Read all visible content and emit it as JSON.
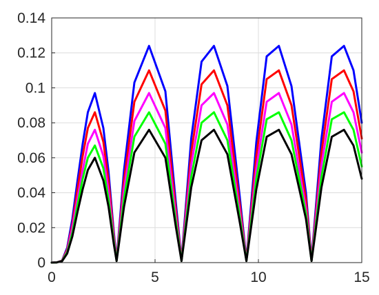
{
  "chart_data": {
    "type": "line",
    "title": "",
    "xlabel": "",
    "ylabel": "",
    "xlim": [
      0,
      15
    ],
    "ylim": [
      0,
      0.14
    ],
    "grid": true,
    "legend": "none",
    "xticks": [
      0,
      5,
      10,
      15
    ],
    "xtick_labels": [
      "0",
      "5",
      "10",
      "15"
    ],
    "yticks": [
      0,
      0.02,
      0.04,
      0.06,
      0.08,
      0.1,
      0.12,
      0.14
    ],
    "ytick_labels": [
      "0",
      "0.02",
      "0.04",
      "0.06",
      "0.08",
      "0.1",
      "0.12",
      "0.14"
    ],
    "x": [
      0,
      0.25,
      0.5,
      0.75,
      1,
      1.25,
      1.5,
      1.75,
      2.09,
      2.5,
      2.75,
      3,
      3.14,
      3.5,
      4,
      4.71,
      5.5,
      6,
      6.28,
      6.75,
      7.25,
      7.85,
      8.5,
      9.1,
      9.42,
      9.9,
      10.4,
      10.99,
      11.6,
      12.3,
      12.57,
      13.05,
      13.55,
      14.14,
      14.6,
      15
    ],
    "series": [
      {
        "color": "#0000ff",
        "values": [
          0,
          0.0001,
          0.0012,
          0.0085,
          0.025,
          0.047,
          0.068,
          0.086,
          0.097,
          0.077,
          0.052,
          0.018,
          0.0015,
          0.053,
          0.103,
          0.124,
          0.098,
          0.035,
          0.0015,
          0.071,
          0.115,
          0.124,
          0.101,
          0.0375,
          0.0015,
          0.069,
          0.118,
          0.124,
          0.101,
          0.04,
          0.0015,
          0.071,
          0.118,
          0.124,
          0.11,
          0.08
        ]
      },
      {
        "color": "#ff0000",
        "values": [
          0,
          0.0001,
          0.0011,
          0.0075,
          0.022,
          0.042,
          0.061,
          0.077,
          0.086,
          0.069,
          0.047,
          0.016,
          0.0013,
          0.047,
          0.092,
          0.11,
          0.087,
          0.031,
          0.0013,
          0.063,
          0.102,
          0.11,
          0.09,
          0.033,
          0.0013,
          0.061,
          0.105,
          0.11,
          0.09,
          0.036,
          0.0013,
          0.063,
          0.105,
          0.11,
          0.098,
          0.071
        ]
      },
      {
        "color": "#ff00ff",
        "values": [
          0,
          0.0001,
          0.001,
          0.0066,
          0.02,
          0.037,
          0.053,
          0.068,
          0.076,
          0.061,
          0.041,
          0.014,
          0.0012,
          0.042,
          0.081,
          0.097,
          0.077,
          0.027,
          0.0012,
          0.056,
          0.09,
          0.097,
          0.079,
          0.029,
          0.0012,
          0.054,
          0.092,
          0.097,
          0.079,
          0.031,
          0.0012,
          0.056,
          0.092,
          0.097,
          0.086,
          0.063
        ]
      },
      {
        "color": "#00ff00",
        "values": [
          0,
          0.0001,
          0.0009,
          0.0059,
          0.017,
          0.033,
          0.048,
          0.06,
          0.067,
          0.054,
          0.036,
          0.0126,
          0.001,
          0.037,
          0.072,
          0.086,
          0.068,
          0.024,
          0.001,
          0.049,
          0.08,
          0.086,
          0.07,
          0.026,
          0.001,
          0.048,
          0.082,
          0.086,
          0.07,
          0.028,
          0.001,
          0.049,
          0.082,
          0.086,
          0.076,
          0.055
        ]
      },
      {
        "color": "#000000",
        "values": [
          0,
          0.0001,
          0.0008,
          0.0052,
          0.015,
          0.029,
          0.042,
          0.053,
          0.06,
          0.047,
          0.032,
          0.011,
          0.0009,
          0.032,
          0.063,
          0.076,
          0.06,
          0.021,
          0.0009,
          0.043,
          0.07,
          0.076,
          0.062,
          0.023,
          0.0009,
          0.042,
          0.072,
          0.076,
          0.062,
          0.025,
          0.0009,
          0.043,
          0.072,
          0.076,
          0.067,
          0.048
        ]
      }
    ]
  }
}
